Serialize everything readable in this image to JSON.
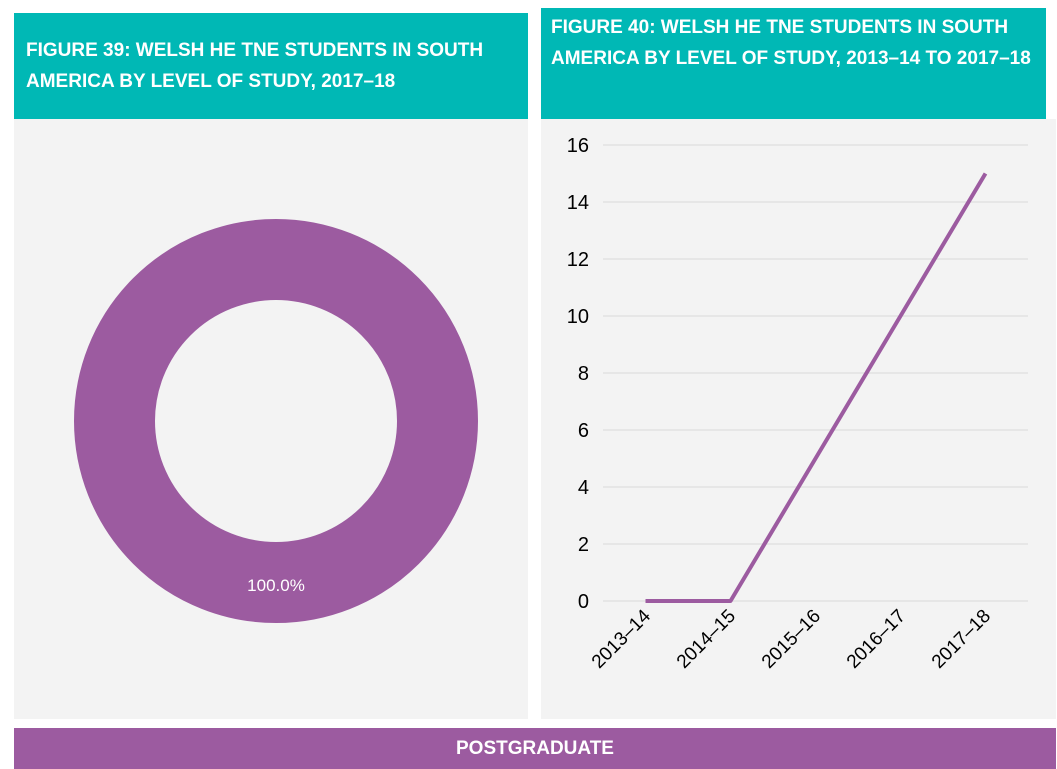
{
  "figures": {
    "left_title": "FIGURE 39: WELSH HE TNE STUDENTS IN SOUTH AMERICA BY LEVEL OF STUDY, 2017–18",
    "right_title": "FIGURE 40: WELSH HE TNE STUDENTS IN SOUTH AMERICA BY LEVEL OF STUDY, 2013–14 TO 2017–18"
  },
  "footer": {
    "label": "POSTGRADUATE"
  },
  "colors": {
    "header": "#00b8b5",
    "series": "#9c5ba0",
    "panel": "#f3f3f3"
  },
  "chart_data": [
    {
      "type": "pie",
      "style": "donut",
      "slices": [
        {
          "label": "100.0%",
          "value": 100.0
        }
      ]
    },
    {
      "type": "line",
      "categories": [
        "2013–14",
        "2014–15",
        "2015–16",
        "2016–17",
        "2017–18"
      ],
      "values": [
        0,
        0,
        5,
        10,
        15
      ],
      "ylim": [
        0,
        16
      ],
      "yticks": [
        "0",
        "2",
        "4",
        "6",
        "8",
        "10",
        "12",
        "14",
        "16"
      ],
      "grid": true
    }
  ]
}
